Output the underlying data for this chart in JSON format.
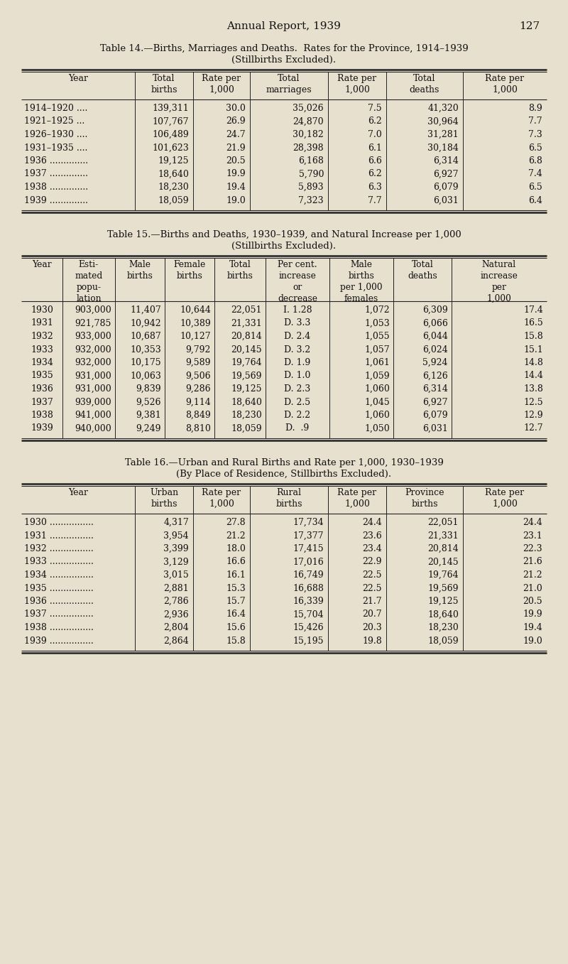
{
  "bg_color": "#e8e0cf",
  "page_header": "Annual Report, 1939",
  "page_number": "127",
  "table14": {
    "title_line1": "Table 14.—Births, Marriages and Deaths.  Rates for the Province, 1914–1939",
    "title_line2": "(Stillbirths Excluded).",
    "col_headers": [
      "Year",
      "Total\nbirths",
      "Rate per\n1,000",
      "Total\nmarriages",
      "Rate per\n1,000",
      "Total\ndeaths",
      "Rate per\n1,000"
    ],
    "rows": [
      [
        "1914–1920 ....",
        "139,311",
        "30.0",
        "35,026",
        "7.5",
        "41,320",
        "8.9"
      ],
      [
        "1921–1925 ...",
        "107,767",
        "26.9",
        "24,870",
        "6.2",
        "30,964",
        "7.7"
      ],
      [
        "1926–1930 ....",
        "106,489",
        "24.7",
        "30,182",
        "7.0",
        "31,281",
        "7.3"
      ],
      [
        "1931–1935 ....",
        "101,623",
        "21.9",
        "28,398",
        "6.1",
        "30,184",
        "6.5"
      ],
      [
        "1936 ..............",
        "19,125",
        "20.5",
        "6,168",
        "6.6",
        "6,314",
        "6.8"
      ],
      [
        "1937 ..............",
        "18,640",
        "19.9",
        "5,790",
        "6.2",
        "6,927",
        "7.4"
      ],
      [
        "1938 ..............",
        "18,230",
        "19.4",
        "5,893",
        "6.3",
        "6,079",
        "6.5"
      ],
      [
        "1939 ..............",
        "18,059",
        "19.0",
        "7,323",
        "7.7",
        "6,031",
        "6.4"
      ]
    ]
  },
  "table15": {
    "title_line1": "Table 15.—Births and Deaths, 1930–1939, and Natural Increase per 1,000",
    "title_line2": "(Stillbirths Excluded).",
    "col_headers": [
      "Year",
      "Esti-\nmated\npopu-\nlation",
      "Male\nbirths",
      "Female\nbirths",
      "Total\nbirths",
      "Per cent.\nincrease\nor\ndecrease",
      "Male\nbirths\nper 1,000\nfemales",
      "Total\ndeaths",
      "Natural\nincrease\nper\n1,000"
    ],
    "rows": [
      [
        "1930",
        "903,000",
        "11,407",
        "10,644",
        "22,051",
        "I. 1.28",
        "1,072",
        "6,309",
        "17.4"
      ],
      [
        "1931",
        "921,785",
        "10,942",
        "10,389",
        "21,331",
        "D. 3.3",
        "1,053",
        "6,066",
        "16.5"
      ],
      [
        "1932",
        "933,000",
        "10,687",
        "10,127",
        "20,814",
        "D. 2.4",
        "1,055",
        "6,044",
        "15.8"
      ],
      [
        "1933",
        "932,000",
        "10,353",
        "9,792",
        "20,145",
        "D. 3.2",
        "1,057",
        "6,024",
        "15.1"
      ],
      [
        "1934",
        "932,000",
        "10,175",
        "9,589",
        "19,764",
        "D. 1.9",
        "1,061",
        "5,924",
        "14.8"
      ],
      [
        "1935",
        "931,000",
        "10,063",
        "9,506",
        "19,569",
        "D. 1.0",
        "1,059",
        "6,126",
        "14.4"
      ],
      [
        "1936",
        "931,000",
        "9,839",
        "9,286",
        "19,125",
        "D. 2.3",
        "1,060",
        "6,314",
        "13.8"
      ],
      [
        "1937",
        "939,000",
        "9,526",
        "9,114",
        "18,640",
        "D. 2.5",
        "1,045",
        "6,927",
        "12.5"
      ],
      [
        "1938",
        "941,000",
        "9,381",
        "8,849",
        "18,230",
        "D. 2.2",
        "1,060",
        "6,079",
        "12.9"
      ],
      [
        "1939",
        "940,000",
        "9,249",
        "8,810",
        "18,059",
        "D.  .9",
        "1,050",
        "6,031",
        "12.7"
      ]
    ]
  },
  "table16": {
    "title_line1": "Table 16.—Urban and Rural Births and Rate per 1,000, 1930–1939",
    "title_line2": "(By Place of Residence, Stillbirths Excluded).",
    "col_headers": [
      "Year",
      "Urban\nbirths",
      "Rate per\n1,000",
      "Rural\nbirths",
      "Rate per\n1,000",
      "Province\nbirths",
      "Rate per\n1,000"
    ],
    "rows": [
      [
        "1930 ................",
        "4,317",
        "27.8",
        "17,734",
        "24.4",
        "22,051",
        "24.4"
      ],
      [
        "1931 ................",
        "3,954",
        "21.2",
        "17,377",
        "23.6",
        "21,331",
        "23.1"
      ],
      [
        "1932 ................",
        "3,399",
        "18.0",
        "17,415",
        "23.4",
        "20,814",
        "22.3"
      ],
      [
        "1933 ................",
        "3,129",
        "16.6",
        "17,016",
        "22.9",
        "20,145",
        "21.6"
      ],
      [
        "1934 ................",
        "3,015",
        "16.1",
        "16,749",
        "22.5",
        "19,764",
        "21.2"
      ],
      [
        "1935 ................",
        "2,881",
        "15.3",
        "16,688",
        "22.5",
        "19,569",
        "21.0"
      ],
      [
        "1936 ................",
        "2,786",
        "15.7",
        "16,339",
        "21.7",
        "19,125",
        "20.5"
      ],
      [
        "1937 ................",
        "2,936",
        "16.4",
        "15,704",
        "20.7",
        "18,640",
        "19.9"
      ],
      [
        "1938 ................",
        "2,804",
        "15.6",
        "15,426",
        "20.3",
        "18,230",
        "19.4"
      ],
      [
        "1939 ................",
        "2,864",
        "15.8",
        "15,195",
        "19.8",
        "18,059",
        "19.0"
      ]
    ]
  },
  "text_color": "#111111",
  "line_color": "#222222"
}
